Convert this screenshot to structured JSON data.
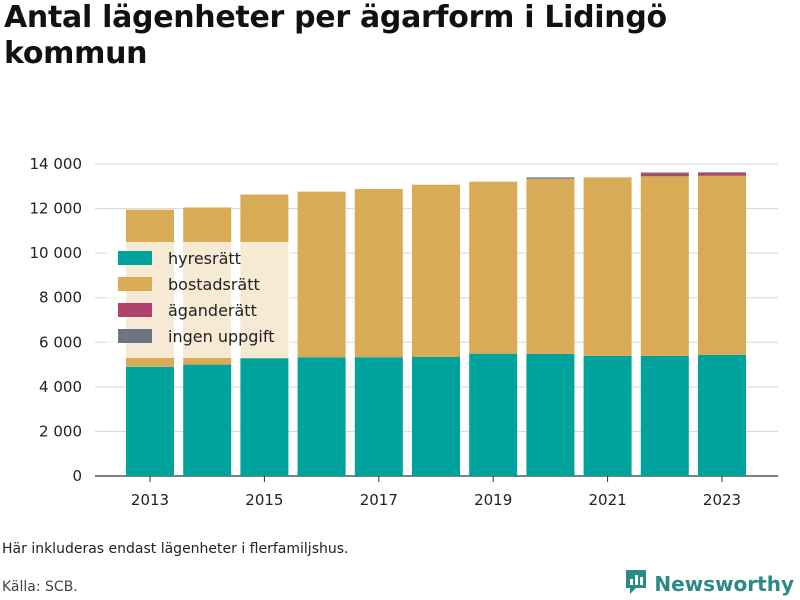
{
  "title": "Antal lägenheter per ägarform i Lidingö kommun",
  "note": "Här inkluderas endast lägenheter i flerfamiljshus.",
  "source": "Källa: SCB.",
  "brand": {
    "name": "Newsworthy",
    "icon": "newsworthy-logo-icon",
    "color": "#2a8a86"
  },
  "chart_data": {
    "type": "bar",
    "stacked": true,
    "categories": [
      "2013",
      "2014",
      "2015",
      "2016",
      "2017",
      "2018",
      "2019",
      "2020",
      "2021",
      "2022",
      "2023"
    ],
    "x_tick_labels": [
      "2013",
      "2015",
      "2017",
      "2019",
      "2021",
      "2023"
    ],
    "ylim": [
      0,
      14000
    ],
    "y_ticks": [
      0,
      2000,
      4000,
      6000,
      8000,
      10000,
      12000,
      14000
    ],
    "y_tick_labels": [
      "0",
      "2 000",
      "4 000",
      "6 000",
      "8 000",
      "10 000",
      "12 000",
      "14 000"
    ],
    "grid": true,
    "legend_position": "top-left",
    "series": [
      {
        "name": "hyresrätt",
        "color": "#00a39b",
        "values": [
          4900,
          5000,
          5280,
          5330,
          5330,
          5340,
          5490,
          5480,
          5390,
          5390,
          5440
        ]
      },
      {
        "name": "bostadsrätt",
        "color": "#d9ab57",
        "values": [
          7050,
          7050,
          7350,
          7430,
          7550,
          7730,
          7720,
          7860,
          8010,
          8060,
          8030
        ]
      },
      {
        "name": "äganderätt",
        "color": "#b0426e",
        "values": [
          0,
          0,
          0,
          0,
          0,
          0,
          0,
          0,
          0,
          120,
          130
        ]
      },
      {
        "name": "ingen uppgift",
        "color": "#6d7380",
        "values": [
          0,
          0,
          0,
          0,
          0,
          0,
          0,
          60,
          0,
          50,
          30
        ]
      }
    ]
  }
}
